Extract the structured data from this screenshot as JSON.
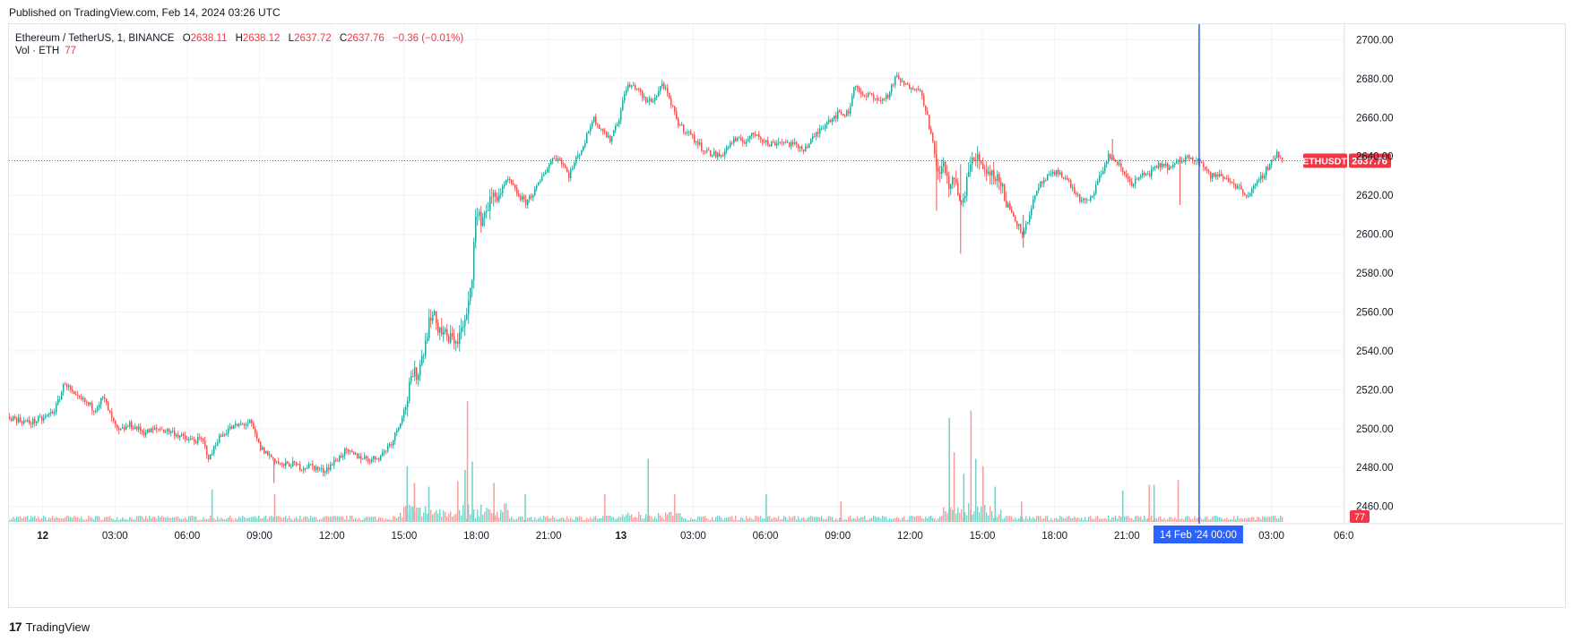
{
  "header": {
    "published": "Published on TradingView.com, Feb 14, 2024 03:26 UTC"
  },
  "legend": {
    "symbol": "Ethereum / TetherUS, 1, BINANCE",
    "o_label": "O",
    "o_value": "2638.11",
    "h_label": "H",
    "h_value": "2638.12",
    "l_label": "L",
    "l_value": "2637.72",
    "c_label": "C",
    "c_value": "2637.76",
    "change": "−0.36 (−0.01%)",
    "vol_label": "Vol · ETH",
    "vol_value": "77"
  },
  "price_tag": {
    "ticker": "ETHUSDT",
    "price": "2637.76"
  },
  "volume_tag": "77",
  "crosshair_label": "14 Feb '24   00:00",
  "footer": {
    "brand": "TradingView"
  },
  "colors": {
    "up": "#26a69a",
    "down": "#ef5350",
    "up_vol": "#7fcfc6",
    "down_vol": "#f5a3a1",
    "crosshair": "#2962ff",
    "price_line": "#f23645"
  },
  "chart_data": {
    "type": "candlestick",
    "title": "Ethereum / TetherUS, 1, BINANCE",
    "ylim": [
      2452,
      2708
    ],
    "y_ticks": [
      2460,
      2480,
      2500,
      2520,
      2540,
      2560,
      2580,
      2600,
      2620,
      2640,
      2660,
      2680,
      2700
    ],
    "y_tick_labels": [
      "2460.00",
      "2480.00",
      "2500.00",
      "2520.00",
      "2540.00",
      "2560.00",
      "2580.00",
      "2600.00",
      "2620.00",
      "2640.00",
      "2660.00",
      "2680.00",
      "2700.00"
    ],
    "x_ticks": [
      "12",
      "03:00",
      "06:00",
      "09:00",
      "12:00",
      "15:00",
      "18:00",
      "21:00",
      "13",
      "03:00",
      "06:00",
      "09:00",
      "12:00",
      "15:00",
      "18:00",
      "21:00",
      "03:00",
      "06:0"
    ],
    "x_tick_hours": [
      0,
      3,
      6,
      9,
      12,
      15,
      18,
      21,
      24,
      27,
      30,
      33,
      36,
      39,
      42,
      45,
      51,
      54
    ],
    "xlim_hours": [
      -1.4,
      51.5
    ],
    "last_price": 2637.76,
    "crosshair_hours": 48,
    "price_path": [
      [
        -1.4,
        2506
      ],
      [
        -0.6,
        2503
      ],
      [
        0.0,
        2505
      ],
      [
        0.5,
        2510
      ],
      [
        0.9,
        2524
      ],
      [
        1.3,
        2516
      ],
      [
        1.7,
        2514
      ],
      [
        2.1,
        2510
      ],
      [
        2.5,
        2516
      ],
      [
        2.8,
        2506
      ],
      [
        3.1,
        2498
      ],
      [
        3.6,
        2502
      ],
      [
        4.2,
        2498
      ],
      [
        4.8,
        2500
      ],
      [
        5.4,
        2498
      ],
      [
        6.0,
        2494
      ],
      [
        6.6,
        2494
      ],
      [
        6.9,
        2484
      ],
      [
        7.2,
        2494
      ],
      [
        7.7,
        2500
      ],
      [
        8.2,
        2502
      ],
      [
        8.6,
        2503
      ],
      [
        9.0,
        2490
      ],
      [
        9.4,
        2486
      ],
      [
        9.9,
        2481
      ],
      [
        10.3,
        2482
      ],
      [
        10.7,
        2480
      ],
      [
        11.1,
        2481
      ],
      [
        11.6,
        2478
      ],
      [
        12.0,
        2482
      ],
      [
        12.5,
        2488
      ],
      [
        13.0,
        2486
      ],
      [
        13.6,
        2484
      ],
      [
        14.0,
        2486
      ],
      [
        14.5,
        2494
      ],
      [
        15.0,
        2510
      ],
      [
        15.3,
        2526
      ],
      [
        15.6,
        2530
      ],
      [
        15.9,
        2548
      ],
      [
        16.1,
        2560
      ],
      [
        16.4,
        2552
      ],
      [
        16.8,
        2546
      ],
      [
        17.2,
        2546
      ],
      [
        17.6,
        2558
      ],
      [
        17.8,
        2580
      ],
      [
        17.9,
        2608
      ],
      [
        18.2,
        2608
      ],
      [
        18.6,
        2618
      ],
      [
        19.0,
        2622
      ],
      [
        19.3,
        2628
      ],
      [
        19.6,
        2622
      ],
      [
        20.0,
        2616
      ],
      [
        20.5,
        2624
      ],
      [
        20.8,
        2632
      ],
      [
        21.2,
        2640
      ],
      [
        21.5,
        2638
      ],
      [
        21.8,
        2630
      ],
      [
        22.1,
        2638
      ],
      [
        22.5,
        2648
      ],
      [
        22.8,
        2660
      ],
      [
        23.2,
        2654
      ],
      [
        23.5,
        2648
      ],
      [
        23.9,
        2660
      ],
      [
        24.2,
        2676
      ],
      [
        24.6,
        2676
      ],
      [
        25.0,
        2668
      ],
      [
        25.4,
        2670
      ],
      [
        25.7,
        2678
      ],
      [
        26.0,
        2668
      ],
      [
        26.4,
        2656
      ],
      [
        26.8,
        2652
      ],
      [
        27.2,
        2646
      ],
      [
        27.6,
        2642
      ],
      [
        28.1,
        2640
      ],
      [
        28.6,
        2648
      ],
      [
        29.1,
        2648
      ],
      [
        29.6,
        2652
      ],
      [
        30.1,
        2646
      ],
      [
        30.6,
        2648
      ],
      [
        31.1,
        2646
      ],
      [
        31.6,
        2644
      ],
      [
        32.0,
        2650
      ],
      [
        32.5,
        2658
      ],
      [
        33.0,
        2662
      ],
      [
        33.4,
        2662
      ],
      [
        33.7,
        2678
      ],
      [
        34.0,
        2670
      ],
      [
        34.4,
        2672
      ],
      [
        34.7,
        2668
      ],
      [
        35.1,
        2672
      ],
      [
        35.4,
        2681
      ],
      [
        35.8,
        2676
      ],
      [
        36.3,
        2676
      ],
      [
        36.6,
        2666
      ],
      [
        36.9,
        2648
      ],
      [
        37.1,
        2630
      ],
      [
        37.3,
        2636
      ],
      [
        37.6,
        2626
      ],
      [
        37.9,
        2626
      ],
      [
        38.1,
        2612
      ],
      [
        38.4,
        2634
      ],
      [
        38.8,
        2640
      ],
      [
        39.2,
        2632
      ],
      [
        39.6,
        2630
      ],
      [
        40.0,
        2616
      ],
      [
        40.4,
        2606
      ],
      [
        40.7,
        2600
      ],
      [
        41.0,
        2614
      ],
      [
        41.4,
        2626
      ],
      [
        41.8,
        2630
      ],
      [
        42.2,
        2632
      ],
      [
        42.6,
        2626
      ],
      [
        43.0,
        2618
      ],
      [
        43.4,
        2616
      ],
      [
        43.8,
        2628
      ],
      [
        44.2,
        2640
      ],
      [
        44.5,
        2638
      ],
      [
        44.8,
        2632
      ],
      [
        45.2,
        2626
      ],
      [
        45.6,
        2630
      ],
      [
        46.0,
        2632
      ],
      [
        46.4,
        2636
      ],
      [
        46.8,
        2634
      ],
      [
        47.2,
        2638
      ],
      [
        47.6,
        2640
      ],
      [
        48.0,
        2638
      ],
      [
        48.4,
        2630
      ],
      [
        48.8,
        2630
      ],
      [
        49.2,
        2628
      ],
      [
        49.6,
        2624
      ],
      [
        50.0,
        2620
      ],
      [
        50.4,
        2626
      ],
      [
        50.8,
        2634
      ],
      [
        51.2,
        2642
      ],
      [
        51.4,
        2637.76
      ]
    ],
    "volume_spikes": [
      [
        7.0,
        35
      ],
      [
        9.6,
        30
      ],
      [
        15.1,
        60
      ],
      [
        15.4,
        42
      ],
      [
        16.0,
        38
      ],
      [
        17.2,
        44
      ],
      [
        17.5,
        56
      ],
      [
        17.6,
        130
      ],
      [
        17.8,
        65
      ],
      [
        18.7,
        42
      ],
      [
        20.0,
        30
      ],
      [
        23.3,
        30
      ],
      [
        25.1,
        68
      ],
      [
        26.2,
        30
      ],
      [
        30.0,
        30
      ],
      [
        33.1,
        22
      ],
      [
        37.6,
        112
      ],
      [
        37.8,
        75
      ],
      [
        38.2,
        52
      ],
      [
        38.5,
        120
      ],
      [
        38.7,
        68
      ],
      [
        39.0,
        60
      ],
      [
        39.5,
        38
      ],
      [
        40.6,
        22
      ],
      [
        44.8,
        34
      ],
      [
        45.9,
        40
      ],
      [
        46.1,
        40
      ],
      [
        47.1,
        45
      ]
    ],
    "volume_max": 135
  }
}
